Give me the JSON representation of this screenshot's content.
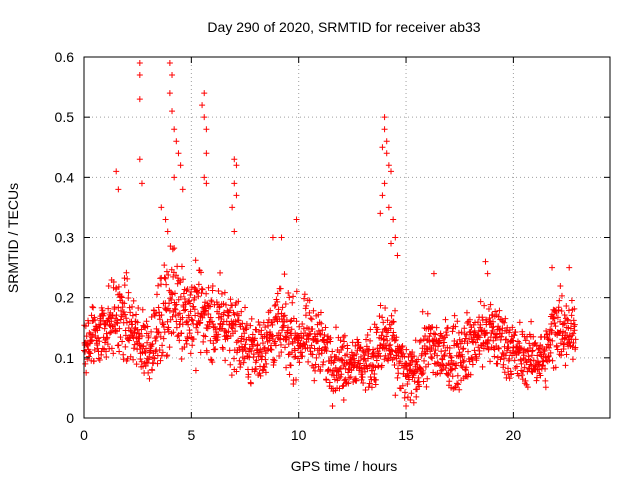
{
  "chart_data": {
    "type": "scatter",
    "title": "Day 290 of 2020, SRMTID for receiver ab33",
    "xlabel": "GPS time / hours",
    "ylabel": "SRMTID / TECUs",
    "xlim": [
      0,
      24.5
    ],
    "ylim": [
      0,
      0.6
    ],
    "xticks": [
      0,
      5,
      10,
      15,
      20
    ],
    "xtick_labels": [
      "0",
      "5",
      "10",
      "15",
      "20"
    ],
    "yticks": [
      0,
      0.1,
      0.2,
      0.3,
      0.4,
      0.5,
      0.6
    ],
    "ytick_labels": [
      "0",
      "0.1",
      "0.2",
      "0.3",
      "0.4",
      "0.5",
      "0.6"
    ],
    "grid": true,
    "marker": "+",
    "marker_color": "#ff0000",
    "series": [
      {
        "name": "SRMTID",
        "baseline_envelope": {
          "x_hours": [
            0,
            0.5,
            1,
            1.5,
            2,
            2.5,
            3,
            3.5,
            4,
            4.5,
            5,
            5.5,
            6,
            6.5,
            7,
            7.5,
            8,
            8.5,
            9,
            9.5,
            10,
            10.5,
            11,
            11.5,
            12,
            12.5,
            13,
            13.5,
            14,
            14.5,
            15,
            15.5,
            16,
            16.5,
            17,
            17.5,
            18,
            18.5,
            19,
            19.5,
            20,
            20.5,
            21,
            21.5,
            22,
            22.5,
            22.9
          ],
          "typical_center": [
            0.12,
            0.14,
            0.15,
            0.17,
            0.16,
            0.13,
            0.12,
            0.15,
            0.2,
            0.19,
            0.17,
            0.18,
            0.15,
            0.16,
            0.15,
            0.12,
            0.11,
            0.13,
            0.15,
            0.14,
            0.13,
            0.14,
            0.12,
            0.1,
            0.09,
            0.1,
            0.09,
            0.1,
            0.13,
            0.11,
            0.07,
            0.08,
            0.12,
            0.11,
            0.1,
            0.11,
            0.12,
            0.14,
            0.14,
            0.13,
            0.11,
            0.1,
            0.1,
            0.1,
            0.16,
            0.15,
            0.14
          ],
          "typical_spread": [
            0.05,
            0.05,
            0.05,
            0.06,
            0.06,
            0.05,
            0.05,
            0.06,
            0.08,
            0.07,
            0.07,
            0.07,
            0.06,
            0.06,
            0.06,
            0.05,
            0.05,
            0.05,
            0.06,
            0.06,
            0.05,
            0.05,
            0.05,
            0.05,
            0.04,
            0.04,
            0.04,
            0.05,
            0.06,
            0.05,
            0.04,
            0.04,
            0.05,
            0.05,
            0.05,
            0.05,
            0.05,
            0.05,
            0.05,
            0.05,
            0.05,
            0.04,
            0.04,
            0.04,
            0.06,
            0.05,
            0.05
          ]
        },
        "peak_points": [
          {
            "x": 2.6,
            "y": 0.59
          },
          {
            "x": 2.6,
            "y": 0.57
          },
          {
            "x": 2.6,
            "y": 0.53
          },
          {
            "x": 2.6,
            "y": 0.43
          },
          {
            "x": 2.7,
            "y": 0.39
          },
          {
            "x": 1.5,
            "y": 0.41
          },
          {
            "x": 1.6,
            "y": 0.38
          },
          {
            "x": 4.0,
            "y": 0.59
          },
          {
            "x": 4.1,
            "y": 0.57
          },
          {
            "x": 4.0,
            "y": 0.54
          },
          {
            "x": 4.1,
            "y": 0.51
          },
          {
            "x": 4.2,
            "y": 0.48
          },
          {
            "x": 4.3,
            "y": 0.46
          },
          {
            "x": 4.4,
            "y": 0.44
          },
          {
            "x": 4.5,
            "y": 0.42
          },
          {
            "x": 4.2,
            "y": 0.4
          },
          {
            "x": 4.6,
            "y": 0.38
          },
          {
            "x": 5.6,
            "y": 0.54
          },
          {
            "x": 5.5,
            "y": 0.52
          },
          {
            "x": 5.6,
            "y": 0.5
          },
          {
            "x": 5.7,
            "y": 0.48
          },
          {
            "x": 5.7,
            "y": 0.44
          },
          {
            "x": 5.6,
            "y": 0.4
          },
          {
            "x": 5.7,
            "y": 0.39
          },
          {
            "x": 3.8,
            "y": 0.33
          },
          {
            "x": 3.9,
            "y": 0.31
          },
          {
            "x": 3.6,
            "y": 0.35
          },
          {
            "x": 7.0,
            "y": 0.43
          },
          {
            "x": 7.1,
            "y": 0.42
          },
          {
            "x": 7.0,
            "y": 0.39
          },
          {
            "x": 7.1,
            "y": 0.37
          },
          {
            "x": 6.9,
            "y": 0.35
          },
          {
            "x": 7.0,
            "y": 0.31
          },
          {
            "x": 9.9,
            "y": 0.33
          },
          {
            "x": 9.2,
            "y": 0.3
          },
          {
            "x": 8.8,
            "y": 0.3
          },
          {
            "x": 14.0,
            "y": 0.5
          },
          {
            "x": 14.0,
            "y": 0.48
          },
          {
            "x": 14.1,
            "y": 0.46
          },
          {
            "x": 13.9,
            "y": 0.45
          },
          {
            "x": 14.1,
            "y": 0.44
          },
          {
            "x": 14.2,
            "y": 0.42
          },
          {
            "x": 14.3,
            "y": 0.41
          },
          {
            "x": 14.0,
            "y": 0.39
          },
          {
            "x": 13.9,
            "y": 0.37
          },
          {
            "x": 14.2,
            "y": 0.35
          },
          {
            "x": 13.8,
            "y": 0.34
          },
          {
            "x": 14.4,
            "y": 0.33
          },
          {
            "x": 14.5,
            "y": 0.3
          },
          {
            "x": 14.3,
            "y": 0.29
          },
          {
            "x": 14.6,
            "y": 0.27
          },
          {
            "x": 18.7,
            "y": 0.26
          },
          {
            "x": 18.8,
            "y": 0.24
          },
          {
            "x": 21.8,
            "y": 0.25
          },
          {
            "x": 22.6,
            "y": 0.25
          },
          {
            "x": 16.3,
            "y": 0.24
          },
          {
            "x": 15.0,
            "y": 0.02
          },
          {
            "x": 12.1,
            "y": 0.03
          },
          {
            "x": 15.2,
            "y": 0.03
          }
        ]
      }
    ]
  }
}
